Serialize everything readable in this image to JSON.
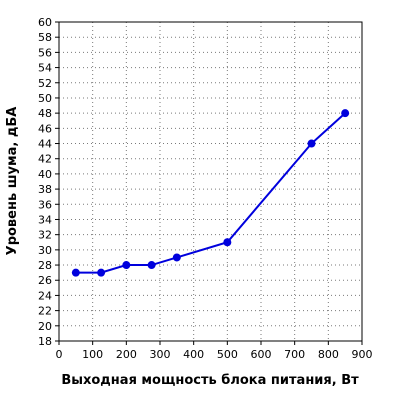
{
  "chart_data": {
    "type": "line",
    "title": "",
    "xlabel": "Выходная мощность блока питания, Вт",
    "ylabel": "Уровень шума, дБА",
    "xlim": [
      0,
      900
    ],
    "ylim": [
      18,
      60
    ],
    "x_ticks": [
      "0",
      "100",
      "200",
      "300",
      "400",
      "500",
      "600",
      "700",
      "800",
      "900"
    ],
    "y_ticks": [
      "18",
      "20",
      "22",
      "24",
      "26",
      "28",
      "30",
      "32",
      "34",
      "36",
      "38",
      "40",
      "42",
      "44",
      "46",
      "48",
      "50",
      "52",
      "54",
      "56",
      "58",
      "60"
    ],
    "grid": true,
    "legend": "none",
    "series": [
      {
        "color": "#0000dd",
        "x": [
          50,
          125,
          200,
          275,
          350,
          500,
          750,
          850
        ],
        "y": [
          27,
          27,
          28,
          28,
          29,
          31,
          44,
          48
        ]
      }
    ]
  }
}
